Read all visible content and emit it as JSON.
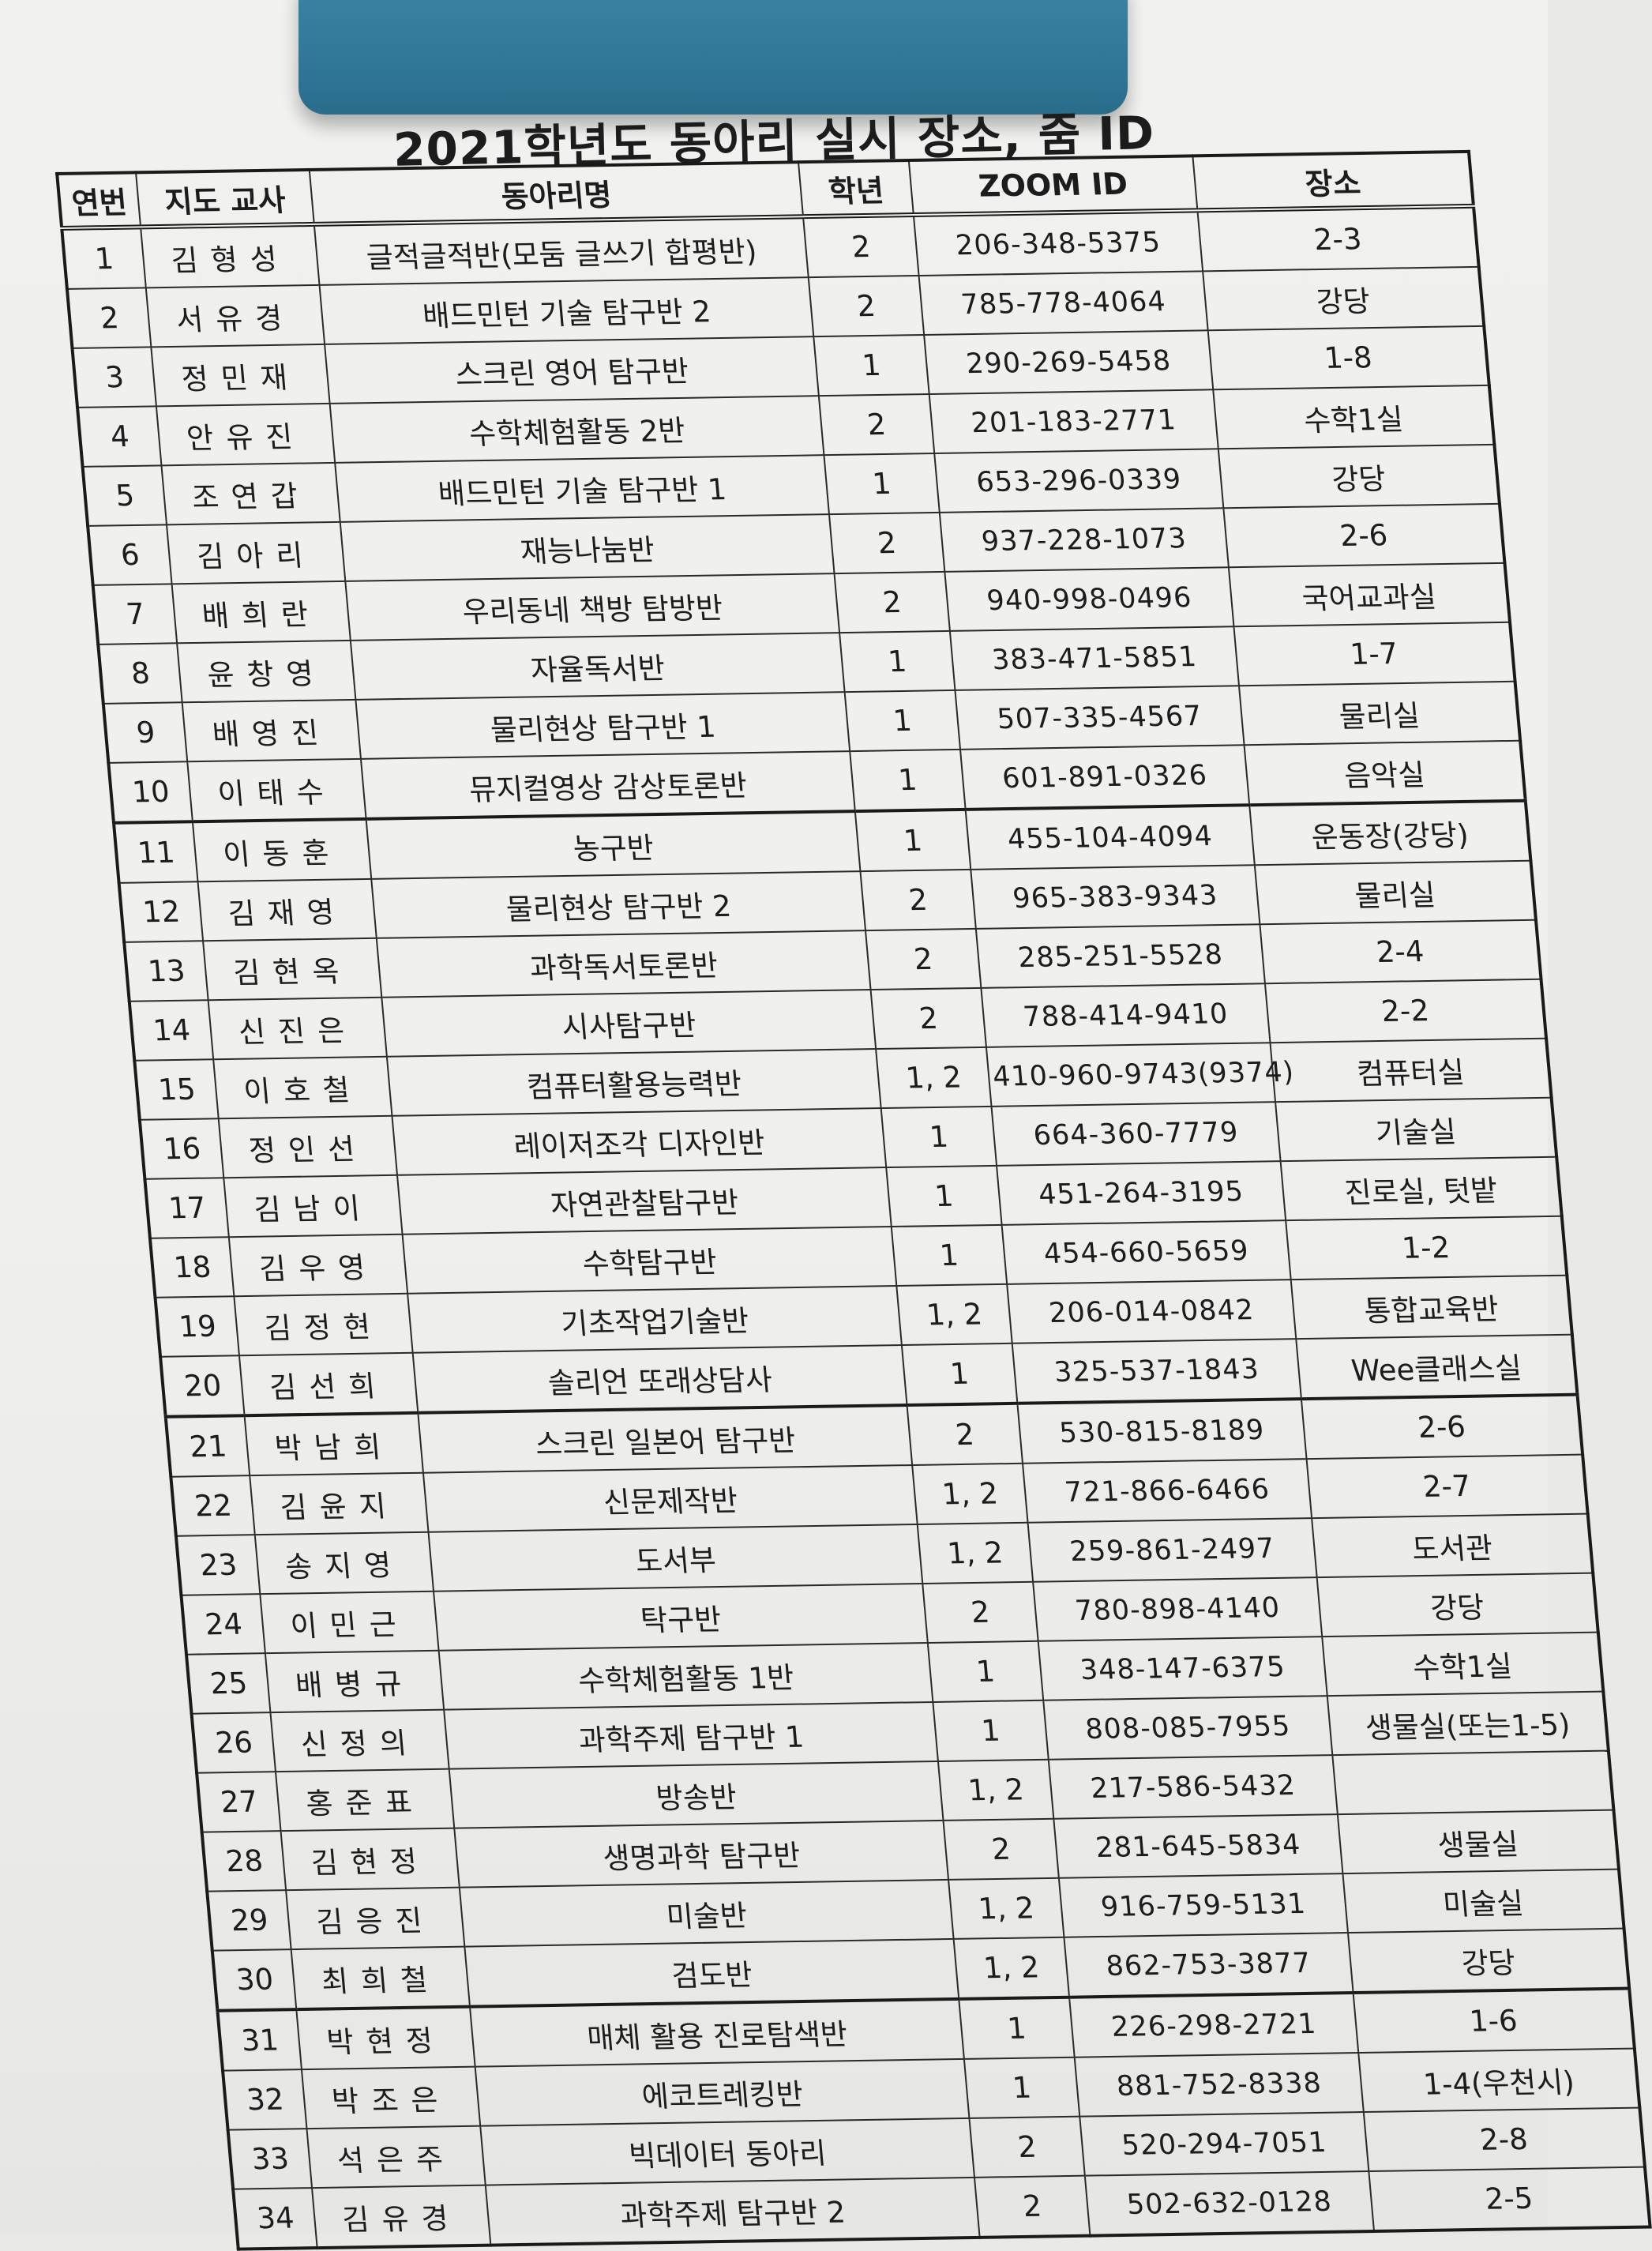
{
  "title": "2021학년도 동아리 실시 장소, 줌 ID",
  "columns": [
    "연번",
    "지도 교사",
    "동아리명",
    "학년",
    "ZOOM ID",
    "장소"
  ],
  "rows": [
    {
      "no": "1",
      "teacher": "김형성",
      "club": "글적글적반(모둠 글쓰기 합평반)",
      "grade": "2",
      "zoom": "206-348-5375",
      "place": "2-3"
    },
    {
      "no": "2",
      "teacher": "서유경",
      "club": "배드민턴 기술 탐구반 2",
      "grade": "2",
      "zoom": "785-778-4064",
      "place": "강당"
    },
    {
      "no": "3",
      "teacher": "정민재",
      "club": "스크린 영어 탐구반",
      "grade": "1",
      "zoom": "290-269-5458",
      "place": "1-8"
    },
    {
      "no": "4",
      "teacher": "안유진",
      "club": "수학체험활동 2반",
      "grade": "2",
      "zoom": "201-183-2771",
      "place": "수학1실"
    },
    {
      "no": "5",
      "teacher": "조연갑",
      "club": "배드민턴 기술 탐구반 1",
      "grade": "1",
      "zoom": "653-296-0339",
      "place": "강당"
    },
    {
      "no": "6",
      "teacher": "김아리",
      "club": "재능나눔반",
      "grade": "2",
      "zoom": "937-228-1073",
      "place": "2-6"
    },
    {
      "no": "7",
      "teacher": "배희란",
      "club": "우리동네 책방 탐방반",
      "grade": "2",
      "zoom": "940-998-0496",
      "place": "국어교과실"
    },
    {
      "no": "8",
      "teacher": "윤창영",
      "club": "자율독서반",
      "grade": "1",
      "zoom": "383-471-5851",
      "place": "1-7"
    },
    {
      "no": "9",
      "teacher": "배영진",
      "club": "물리현상 탐구반 1",
      "grade": "1",
      "zoom": "507-335-4567",
      "place": "물리실"
    },
    {
      "no": "10",
      "teacher": "이태수",
      "club": "뮤지컬영상 감상토론반",
      "grade": "1",
      "zoom": "601-891-0326",
      "place": "음악실"
    },
    {
      "no": "11",
      "teacher": "이동훈",
      "club": "농구반",
      "grade": "1",
      "zoom": "455-104-4094",
      "place": "운동장(강당)"
    },
    {
      "no": "12",
      "teacher": "김재영",
      "club": "물리현상 탐구반 2",
      "grade": "2",
      "zoom": "965-383-9343",
      "place": "물리실"
    },
    {
      "no": "13",
      "teacher": "김현옥",
      "club": "과학독서토론반",
      "grade": "2",
      "zoom": "285-251-5528",
      "place": "2-4"
    },
    {
      "no": "14",
      "teacher": "신진은",
      "club": "시사탐구반",
      "grade": "2",
      "zoom": "788-414-9410",
      "place": "2-2"
    },
    {
      "no": "15",
      "teacher": "이호철",
      "club": "컴퓨터활용능력반",
      "grade": "1, 2",
      "zoom": "410-960-9743(9374)",
      "place": "컴퓨터실"
    },
    {
      "no": "16",
      "teacher": "정인선",
      "club": "레이저조각 디자인반",
      "grade": "1",
      "zoom": "664-360-7779",
      "place": "기술실"
    },
    {
      "no": "17",
      "teacher": "김남이",
      "club": "자연관찰탐구반",
      "grade": "1",
      "zoom": "451-264-3195",
      "place": "진로실, 텃밭"
    },
    {
      "no": "18",
      "teacher": "김우영",
      "club": "수학탐구반",
      "grade": "1",
      "zoom": "454-660-5659",
      "place": "1-2"
    },
    {
      "no": "19",
      "teacher": "김정현",
      "club": "기초작업기술반",
      "grade": "1, 2",
      "zoom": "206-014-0842",
      "place": "통합교육반"
    },
    {
      "no": "20",
      "teacher": "김선희",
      "club": "솔리언 또래상담사",
      "grade": "1",
      "zoom": "325-537-1843",
      "place": "Wee클래스실"
    },
    {
      "no": "21",
      "teacher": "박남희",
      "club": "스크린 일본어 탐구반",
      "grade": "2",
      "zoom": "530-815-8189",
      "place": "2-6"
    },
    {
      "no": "22",
      "teacher": "김윤지",
      "club": "신문제작반",
      "grade": "1, 2",
      "zoom": "721-866-6466",
      "place": "2-7"
    },
    {
      "no": "23",
      "teacher": "송지영",
      "club": "도서부",
      "grade": "1, 2",
      "zoom": "259-861-2497",
      "place": "도서관"
    },
    {
      "no": "24",
      "teacher": "이민근",
      "club": "탁구반",
      "grade": "2",
      "zoom": "780-898-4140",
      "place": "강당"
    },
    {
      "no": "25",
      "teacher": "배병규",
      "club": "수학체험활동 1반",
      "grade": "1",
      "zoom": "348-147-6375",
      "place": "수학1실"
    },
    {
      "no": "26",
      "teacher": "신정의",
      "club": "과학주제 탐구반 1",
      "grade": "1",
      "zoom": "808-085-7955",
      "place": "생물실(또는1-5)"
    },
    {
      "no": "27",
      "teacher": "홍준표",
      "club": "방송반",
      "grade": "1, 2",
      "zoom": "217-586-5432",
      "place": ""
    },
    {
      "no": "28",
      "teacher": "김현정",
      "club": "생명과학 탐구반",
      "grade": "2",
      "zoom": "281-645-5834",
      "place": "생물실"
    },
    {
      "no": "29",
      "teacher": "김응진",
      "club": "미술반",
      "grade": "1, 2",
      "zoom": "916-759-5131",
      "place": "미술실"
    },
    {
      "no": "30",
      "teacher": "최희철",
      "club": "검도반",
      "grade": "1, 2",
      "zoom": "862-753-3877",
      "place": "강당"
    },
    {
      "no": "31",
      "teacher": "박현정",
      "club": "매체 활용 진로탐색반",
      "grade": "1",
      "zoom": "226-298-2721",
      "place": "1-6"
    },
    {
      "no": "32",
      "teacher": "박조은",
      "club": "에코트레킹반",
      "grade": "1",
      "zoom": "881-752-8338",
      "place": "1-4(우천시)"
    },
    {
      "no": "33",
      "teacher": "석은주",
      "club": "빅데이터 동아리",
      "grade": "2",
      "zoom": "520-294-7051",
      "place": "2-8"
    },
    {
      "no": "34",
      "teacher": "김유경",
      "club": "과학주제 탐구반 2",
      "grade": "2",
      "zoom": "502-632-0128",
      "place": "2-5"
    }
  ]
}
